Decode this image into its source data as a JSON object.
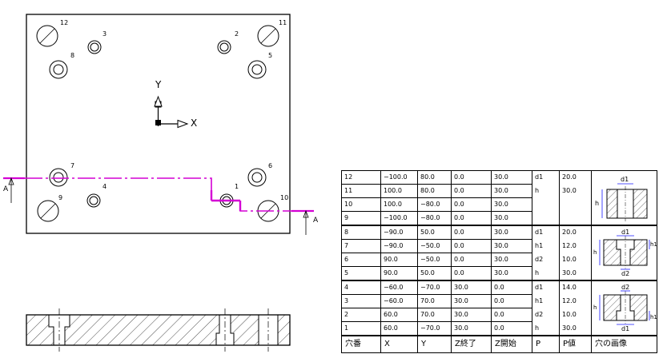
{
  "plan_view": {
    "axis_x_label": "X",
    "axis_y_label": "Y",
    "section_label_left": "A",
    "section_label_right": "A",
    "hole_numbers": [
      "1",
      "2",
      "3",
      "4",
      "5",
      "6",
      "7",
      "8",
      "9",
      "10",
      "11",
      "12"
    ]
  },
  "hole_table": {
    "headers": [
      "穴番",
      "X",
      "Y",
      "Z終了",
      "Z開始",
      "P",
      "P値",
      "穴の画像"
    ],
    "rows": [
      {
        "id": "12",
        "x": "−100.0",
        "y": "80.0",
        "z_end": "0.0",
        "z_start": "30.0"
      },
      {
        "id": "11",
        "x": "100.0",
        "y": "80.0",
        "z_end": "0.0",
        "z_start": "30.0"
      },
      {
        "id": "10",
        "x": "100.0",
        "y": "−80.0",
        "z_end": "0.0",
        "z_start": "30.0"
      },
      {
        "id": "9",
        "x": "−100.0",
        "y": "−80.0",
        "z_end": "0.0",
        "z_start": "30.0"
      },
      {
        "id": "8",
        "x": "−90.0",
        "y": "50.0",
        "z_end": "0.0",
        "z_start": "30.0"
      },
      {
        "id": "7",
        "x": "−90.0",
        "y": "−50.0",
        "z_end": "0.0",
        "z_start": "30.0"
      },
      {
        "id": "6",
        "x": "90.0",
        "y": "−50.0",
        "z_end": "0.0",
        "z_start": "30.0"
      },
      {
        "id": "5",
        "x": "90.0",
        "y": "50.0",
        "z_end": "0.0",
        "z_start": "30.0"
      },
      {
        "id": "4",
        "x": "−60.0",
        "y": "−70.0",
        "z_end": "30.0",
        "z_start": "0.0"
      },
      {
        "id": "3",
        "x": "−60.0",
        "y": "70.0",
        "z_end": "30.0",
        "z_start": "0.0"
      },
      {
        "id": "2",
        "x": "60.0",
        "y": "70.0",
        "z_end": "30.0",
        "z_start": "0.0"
      },
      {
        "id": "1",
        "x": "60.0",
        "y": "−70.0",
        "z_end": "30.0",
        "z_start": "0.0"
      }
    ],
    "groups": [
      {
        "params": [
          {
            "p": "d1",
            "v": "20.0"
          },
          {
            "p": "h",
            "v": "30.0"
          }
        ],
        "image_labels": {
          "top": "d1",
          "left": "h"
        }
      },
      {
        "params": [
          {
            "p": "d1",
            "v": "20.0"
          },
          {
            "p": "h1",
            "v": "12.0"
          },
          {
            "p": "d2",
            "v": "10.0"
          },
          {
            "p": "h",
            "v": "30.0"
          }
        ],
        "image_labels": {
          "top": "d1",
          "right": "h1",
          "left": "h",
          "bottom": "d2"
        }
      },
      {
        "params": [
          {
            "p": "d1",
            "v": "14.0"
          },
          {
            "p": "h1",
            "v": "12.0"
          },
          {
            "p": "d2",
            "v": "10.0"
          },
          {
            "p": "h",
            "v": "30.0"
          }
        ],
        "image_labels": {
          "top": "d2",
          "right": "h1",
          "left": "h",
          "bottom": "d1"
        }
      }
    ]
  }
}
